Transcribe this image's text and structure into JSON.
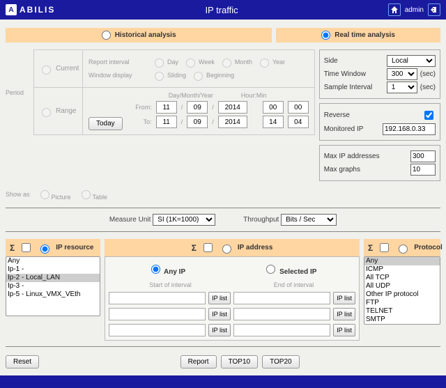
{
  "brand": "ABILIS",
  "logo_letter": "A",
  "page_title": "IP traffic",
  "admin_label": "admin",
  "tabs": {
    "historical": "Historical analysis",
    "realtime": "Real time analysis",
    "selected": "realtime"
  },
  "period": {
    "label": "Period",
    "current": "Current",
    "range": "Range",
    "report_interval": "Report interval",
    "window_display": "Window display",
    "intervals": {
      "day": "Day",
      "week": "Week",
      "month": "Month",
      "year": "Year"
    },
    "displays": {
      "sliding": "Sliding",
      "beginning": "Beginning"
    },
    "today": "Today",
    "from": "From:",
    "to": "To:",
    "dmy_label": "Day/Month/Year",
    "hm_label": "Hour:Min",
    "from_d": "11",
    "from_m": "09",
    "from_y": "2014",
    "from_h": "00",
    "from_min": "00",
    "to_d": "11",
    "to_m": "09",
    "to_y": "2014",
    "to_h": "14",
    "to_min": "04"
  },
  "rt": {
    "side_label": "Side",
    "side_value": "Local",
    "tw_label": "Time Window",
    "tw_value": "300",
    "sec": "(sec)",
    "si_label": "Sample Interval",
    "si_value": "1",
    "reverse_label": "Reverse",
    "reverse_checked": true,
    "monip_label": "Monitored IP",
    "monip_value": "192.168.0.33",
    "maxip_label": "Max IP addresses",
    "maxip_value": "300",
    "maxg_label": "Max graphs",
    "maxg_value": "10"
  },
  "showas": {
    "label": "Show as",
    "picture": "Picture",
    "table": "Table"
  },
  "mid": {
    "measure_label": "Measure Unit",
    "measure_value": "SI (1K=1000)",
    "throughput_label": "Throughput",
    "throughput_value": "Bits / Sec"
  },
  "filters": {
    "sigma": "Σ",
    "ip_resource": {
      "title": "IP resource",
      "options": [
        "Any",
        "Ip-1 -",
        "Ip-2 - Local_LAN",
        "Ip-3 -",
        "Ip-5 - Linux_VMX_VEth"
      ],
      "selected_index": 2
    },
    "ip_address": {
      "title": "IP address",
      "any_ip": "Any IP",
      "selected_ip": "Selected IP",
      "start": "Start of interval",
      "end": "End of interval",
      "iplist": "IP list"
    },
    "protocol": {
      "title": "Protocol",
      "options": [
        "Any",
        "ICMP",
        "All TCP",
        "All UDP",
        "Other IP protocol",
        "FTP",
        "TELNET",
        "SMTP"
      ],
      "selected_index": 0
    }
  },
  "buttons": {
    "reset": "Reset",
    "report": "Report",
    "top10": "TOP10",
    "top20": "TOP20"
  },
  "colors": {
    "accent": "#1a1a9e",
    "tab_bg": "#ffd5a1",
    "highlight": "#2b6fdc"
  }
}
